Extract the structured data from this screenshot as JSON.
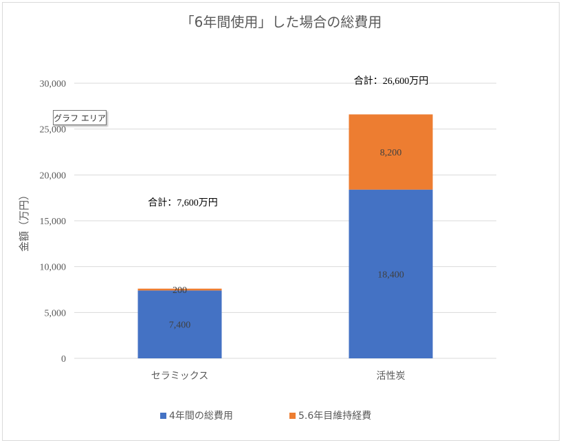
{
  "tooltip": "グラフ エリア",
  "chart_data": {
    "type": "bar",
    "stacked": true,
    "title": "「6年間使用」した場合の総費用",
    "ylabel": "金額（万円）",
    "xlabel": "",
    "ylim": [
      0,
      30000
    ],
    "yticks": [
      0,
      5000,
      10000,
      15000,
      20000,
      25000,
      30000
    ],
    "ytick_labels": [
      "0",
      "5,000",
      "10,000",
      "15,000",
      "20,000",
      "25,000",
      "30,000"
    ],
    "grid": true,
    "legend_position": "bottom",
    "categories": [
      "セラミックス",
      "活性炭"
    ],
    "series": [
      {
        "name": "4年間の総費用",
        "color": "#4472c4",
        "values": [
          7400,
          18400
        ],
        "labels": [
          "7,400",
          "18,400"
        ]
      },
      {
        "name": "5.6年目維持経費",
        "color": "#ed7d31",
        "values": [
          200,
          8200
        ],
        "labels": [
          "200",
          "8,200"
        ]
      }
    ],
    "totals": [
      7600,
      26600
    ],
    "total_labels": [
      "合計：7,600万円",
      "合計：26,600万円"
    ]
  }
}
